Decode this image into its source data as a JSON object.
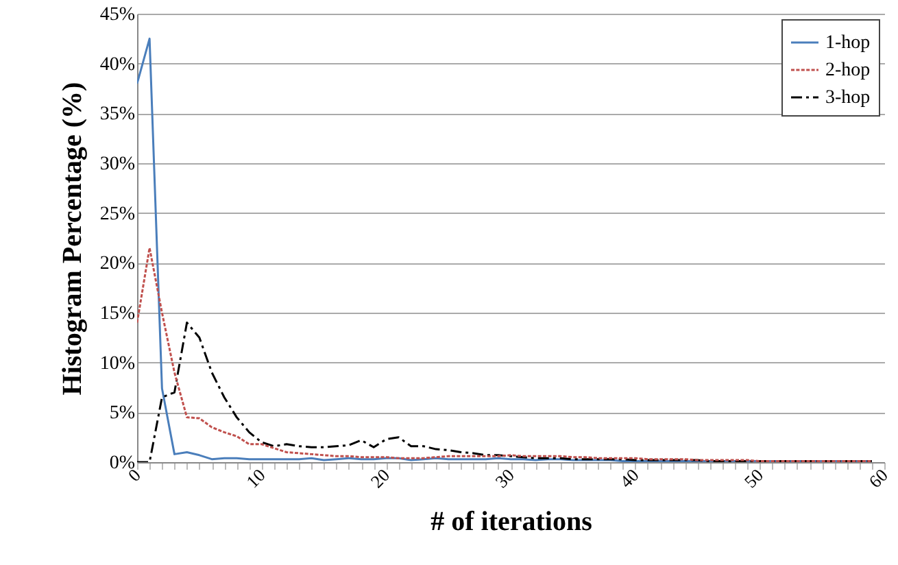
{
  "chart_data": {
    "type": "line",
    "xlabel": "# of iterations",
    "ylabel": "Histogram Percentage (%)",
    "x": [
      0,
      1,
      2,
      3,
      4,
      5,
      6,
      7,
      8,
      9,
      10,
      11,
      12,
      13,
      14,
      15,
      16,
      17,
      18,
      19,
      20,
      21,
      22,
      23,
      24,
      25,
      26,
      27,
      28,
      29,
      30,
      31,
      32,
      33,
      34,
      35,
      36,
      37,
      38,
      39,
      40,
      41,
      42,
      43,
      44,
      45,
      46,
      47,
      48,
      49,
      50,
      51,
      52,
      53,
      54,
      55,
      56,
      57,
      58,
      59
    ],
    "series": [
      {
        "name": "1-hop",
        "color": "#4a7ebb",
        "line_style": "solid",
        "values": [
          38,
          42.5,
          7.4,
          0.8,
          1.0,
          0.7,
          0.3,
          0.4,
          0.4,
          0.3,
          0.3,
          0.3,
          0.3,
          0.3,
          0.4,
          0.2,
          0.3,
          0.4,
          0.3,
          0.3,
          0.4,
          0.4,
          0.2,
          0.3,
          0.4,
          0.3,
          0.3,
          0.3,
          0.3,
          0.4,
          0.3,
          0.3,
          0.2,
          0.3,
          0.3,
          0.2,
          0.2,
          0.2,
          0.2,
          0.1,
          0.1,
          0.1,
          0.1,
          0.1,
          0.1,
          0.1,
          0.1,
          0.1,
          0.1,
          0.1,
          0.1,
          0.1,
          0.1,
          0.1,
          0.1,
          0.1,
          0.1,
          0.1,
          0.1,
          0.1
        ]
      },
      {
        "name": "2-hop",
        "color": "#c0504d",
        "line_style": "dashed",
        "values": [
          14,
          21.5,
          15,
          9,
          4.5,
          4.4,
          3.5,
          3,
          2.6,
          1.8,
          1.8,
          1.4,
          1.0,
          0.9,
          0.8,
          0.7,
          0.6,
          0.6,
          0.5,
          0.5,
          0.5,
          0.4,
          0.4,
          0.4,
          0.5,
          0.6,
          0.6,
          0.6,
          0.6,
          0.6,
          0.7,
          0.6,
          0.6,
          0.6,
          0.6,
          0.5,
          0.5,
          0.4,
          0.4,
          0.4,
          0.4,
          0.3,
          0.3,
          0.3,
          0.3,
          0.2,
          0.2,
          0.2,
          0.2,
          0.2,
          0.1,
          0.1,
          0.1,
          0.1,
          0.1,
          0.1,
          0.1,
          0.1,
          0.1,
          0.1
        ]
      },
      {
        "name": "3-hop",
        "color": "#000000",
        "line_style": "dashdot",
        "values": [
          0,
          0,
          6.5,
          7,
          14,
          12.5,
          9,
          6.5,
          4.5,
          3,
          2,
          1.6,
          1.8,
          1.6,
          1.5,
          1.5,
          1.6,
          1.7,
          2.2,
          1.5,
          2.3,
          2.5,
          1.6,
          1.6,
          1.3,
          1.2,
          1.0,
          0.9,
          0.7,
          0.7,
          0.6,
          0.5,
          0.4,
          0.4,
          0.4,
          0.3,
          0.3,
          0.3,
          0.3,
          0.3,
          0.2,
          0.2,
          0.2,
          0.2,
          0.2,
          0.2,
          0.1,
          0.1,
          0.1,
          0.1,
          0.1,
          0.1,
          0.1,
          0.1,
          0.1,
          0.1,
          0.1,
          0.1,
          0.1,
          0.1
        ]
      }
    ],
    "xlim": [
      0,
      60
    ],
    "xticks": [
      0,
      {
        "value": 1,
        "label": null
      },
      {
        "value": 2,
        "label": null
      },
      {
        "value": 3,
        "label": null
      },
      {
        "value": 4,
        "label": null
      },
      {
        "value": 5,
        "label": null
      },
      {
        "value": 6,
        "label": null
      },
      {
        "value": 7,
        "label": null
      },
      {
        "value": 8,
        "label": null
      },
      {
        "value": 9,
        "label": null
      },
      10,
      {
        "value": 11,
        "label": null
      },
      {
        "value": 12,
        "label": null
      },
      {
        "value": 13,
        "label": null
      },
      {
        "value": 14,
        "label": null
      },
      {
        "value": 15,
        "label": null
      },
      {
        "value": 16,
        "label": null
      },
      {
        "value": 17,
        "label": null
      },
      {
        "value": 18,
        "label": null
      },
      {
        "value": 19,
        "label": null
      },
      20,
      {
        "value": 21,
        "label": null
      },
      {
        "value": 22,
        "label": null
      },
      {
        "value": 23,
        "label": null
      },
      {
        "value": 24,
        "label": null
      },
      {
        "value": 25,
        "label": null
      },
      {
        "value": 26,
        "label": null
      },
      {
        "value": 27,
        "label": null
      },
      {
        "value": 28,
        "label": null
      },
      {
        "value": 29,
        "label": null
      },
      30,
      {
        "value": 31,
        "label": null
      },
      {
        "value": 32,
        "label": null
      },
      {
        "value": 33,
        "label": null
      },
      {
        "value": 34,
        "label": null
      },
      {
        "value": 35,
        "label": null
      },
      {
        "value": 36,
        "label": null
      },
      {
        "value": 37,
        "label": null
      },
      {
        "value": 38,
        "label": null
      },
      {
        "value": 39,
        "label": null
      },
      40,
      {
        "value": 41,
        "label": null
      },
      {
        "value": 42,
        "label": null
      },
      {
        "value": 43,
        "label": null
      },
      {
        "value": 44,
        "label": null
      },
      {
        "value": 45,
        "label": null
      },
      {
        "value": 46,
        "label": null
      },
      {
        "value": 47,
        "label": null
      },
      {
        "value": 48,
        "label": null
      },
      {
        "value": 49,
        "label": null
      },
      50,
      {
        "value": 51,
        "label": null
      },
      {
        "value": 52,
        "label": null
      },
      {
        "value": 53,
        "label": null
      },
      {
        "value": 54,
        "label": null
      },
      {
        "value": 55,
        "label": null
      },
      {
        "value": 56,
        "label": null
      },
      {
        "value": 57,
        "label": null
      },
      {
        "value": 58,
        "label": null
      },
      {
        "value": 59,
        "label": null
      },
      60
    ],
    "ylim": [
      0,
      45
    ],
    "yticks": [
      {
        "value": 0,
        "label": "0%"
      },
      {
        "value": 5,
        "label": "5%"
      },
      {
        "value": 10,
        "label": "10%"
      },
      {
        "value": 15,
        "label": "15%"
      },
      {
        "value": 20,
        "label": "20%"
      },
      {
        "value": 25,
        "label": "25%"
      },
      {
        "value": 30,
        "label": "30%"
      },
      {
        "value": 35,
        "label": "35%"
      },
      {
        "value": 40,
        "label": "40%"
      },
      {
        "value": 45,
        "label": "45%"
      }
    ],
    "grid": "y",
    "legend": "top right",
    "marker": "none"
  }
}
